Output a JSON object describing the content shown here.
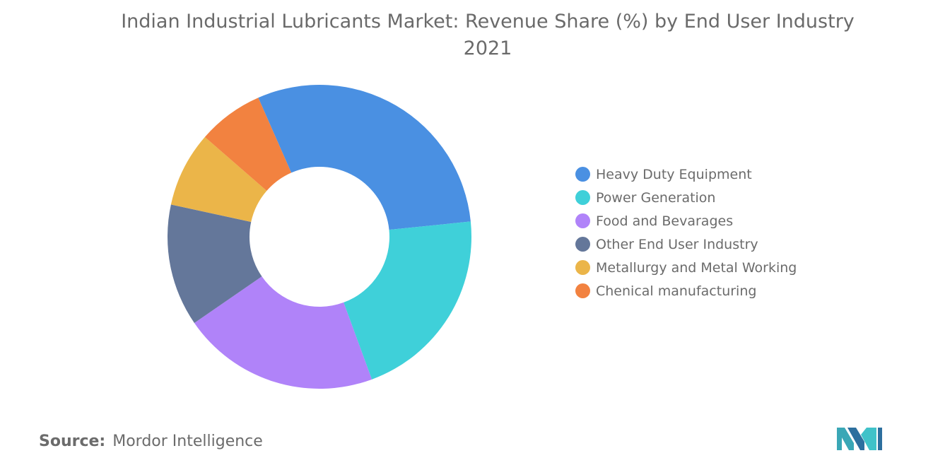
{
  "header": {
    "title_line1": "Indian Industrial Lubricants Market: Revenue Share (%) by End User Industry",
    "title_line2": "2021"
  },
  "chart_data": {
    "type": "pie",
    "subtype": "donut",
    "title": "Indian Industrial Lubricants Market: Revenue Share (%) by End User Industry",
    "subtitle": "2021",
    "legend_position": "right",
    "categories": [
      "Heavy Duty Equipment",
      "Power Generation",
      "Food and Bevarages",
      "Other End User Industry",
      "Metallurgy and Metal Working",
      "Chenical manufacturing"
    ],
    "values": [
      30,
      21,
      21,
      13,
      8,
      7
    ],
    "colors": [
      "#4a90e2",
      "#3fd0d9",
      "#b083f9",
      "#64779a",
      "#ebb549",
      "#f28240"
    ]
  },
  "legend": {
    "items": [
      {
        "label": "Heavy Duty Equipment",
        "color": "#4a90e2"
      },
      {
        "label": "Power Generation",
        "color": "#3fd0d9"
      },
      {
        "label": "Food and Bevarages",
        "color": "#b083f9"
      },
      {
        "label": "Other End User Industry",
        "color": "#64779a"
      },
      {
        "label": "Metallurgy and Metal Working",
        "color": "#ebb549"
      },
      {
        "label": "Chenical manufacturing",
        "color": "#f28240"
      }
    ]
  },
  "footer": {
    "source_label": "Source:",
    "source_value": "Mordor Intelligence",
    "logo_icon": "mordor-intelligence-logo-icon"
  }
}
